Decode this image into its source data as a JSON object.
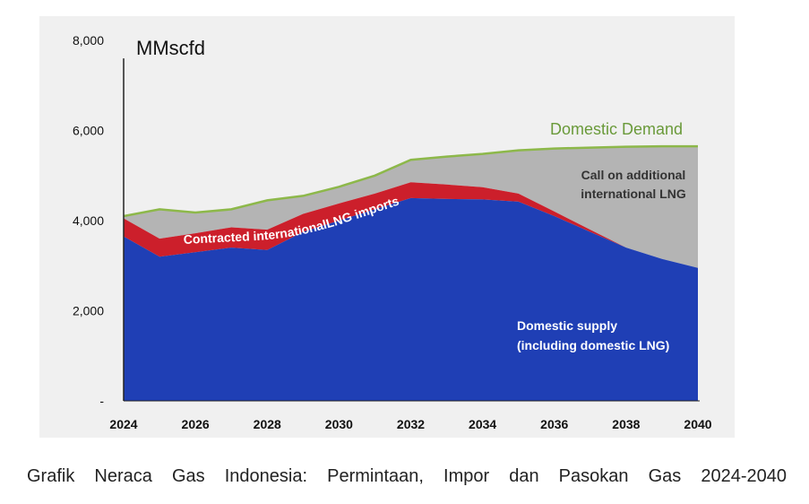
{
  "caption": "Grafik Neraca Gas Indonesia: Permintaan, Impor dan Pasokan Gas 2024-2040",
  "chart_data": {
    "type": "area",
    "unit_label": "MMscfd",
    "x": [
      2024,
      2025,
      2026,
      2027,
      2028,
      2029,
      2030,
      2031,
      2032,
      2033,
      2034,
      2035,
      2036,
      2037,
      2038,
      2039,
      2040
    ],
    "xticks": [
      "2024",
      "2026",
      "2028",
      "2030",
      "2032",
      "2034",
      "2036",
      "2038",
      "2040"
    ],
    "yticks": [
      "-",
      "2,000",
      "4,000",
      "6,000",
      "8,000"
    ],
    "ylim": [
      0,
      8000
    ],
    "series": [
      {
        "name": "Domestic supply (including domestic LNG)",
        "label_lines": [
          "Domestic supply",
          "(including domestic LNG)"
        ],
        "values": [
          3650,
          3200,
          3300,
          3400,
          3350,
          3750,
          4000,
          4250,
          4500,
          4480,
          4470,
          4420,
          4100,
          3750,
          3400,
          3150,
          2950
        ]
      },
      {
        "name": "Contracted internationalLNG imports",
        "label_lines": [
          "Contracted internationalLNG imports"
        ],
        "values": [
          4050,
          3600,
          3720,
          3850,
          3800,
          4150,
          4380,
          4600,
          4850,
          4800,
          4740,
          4600,
          4200,
          3800,
          3400,
          3150,
          2950
        ]
      },
      {
        "name": "Domestic Demand",
        "label_lines": [
          "Domestic Demand"
        ],
        "values": [
          4100,
          4250,
          4180,
          4250,
          4450,
          4550,
          4750,
          5000,
          5350,
          5420,
          5480,
          5560,
          5600,
          5620,
          5640,
          5650,
          5650
        ]
      },
      {
        "name": "Call on additional international LNG",
        "label_lines": [
          "Call on additional",
          "international LNG"
        ]
      }
    ],
    "colors": {
      "domestic_supply": "#1f3fb5",
      "contracted": "#cc1f2b",
      "additional": "#b4b4b4",
      "demand_line": "#8db84a",
      "plot_bg": "#f0f0f0"
    },
    "grid": false
  }
}
